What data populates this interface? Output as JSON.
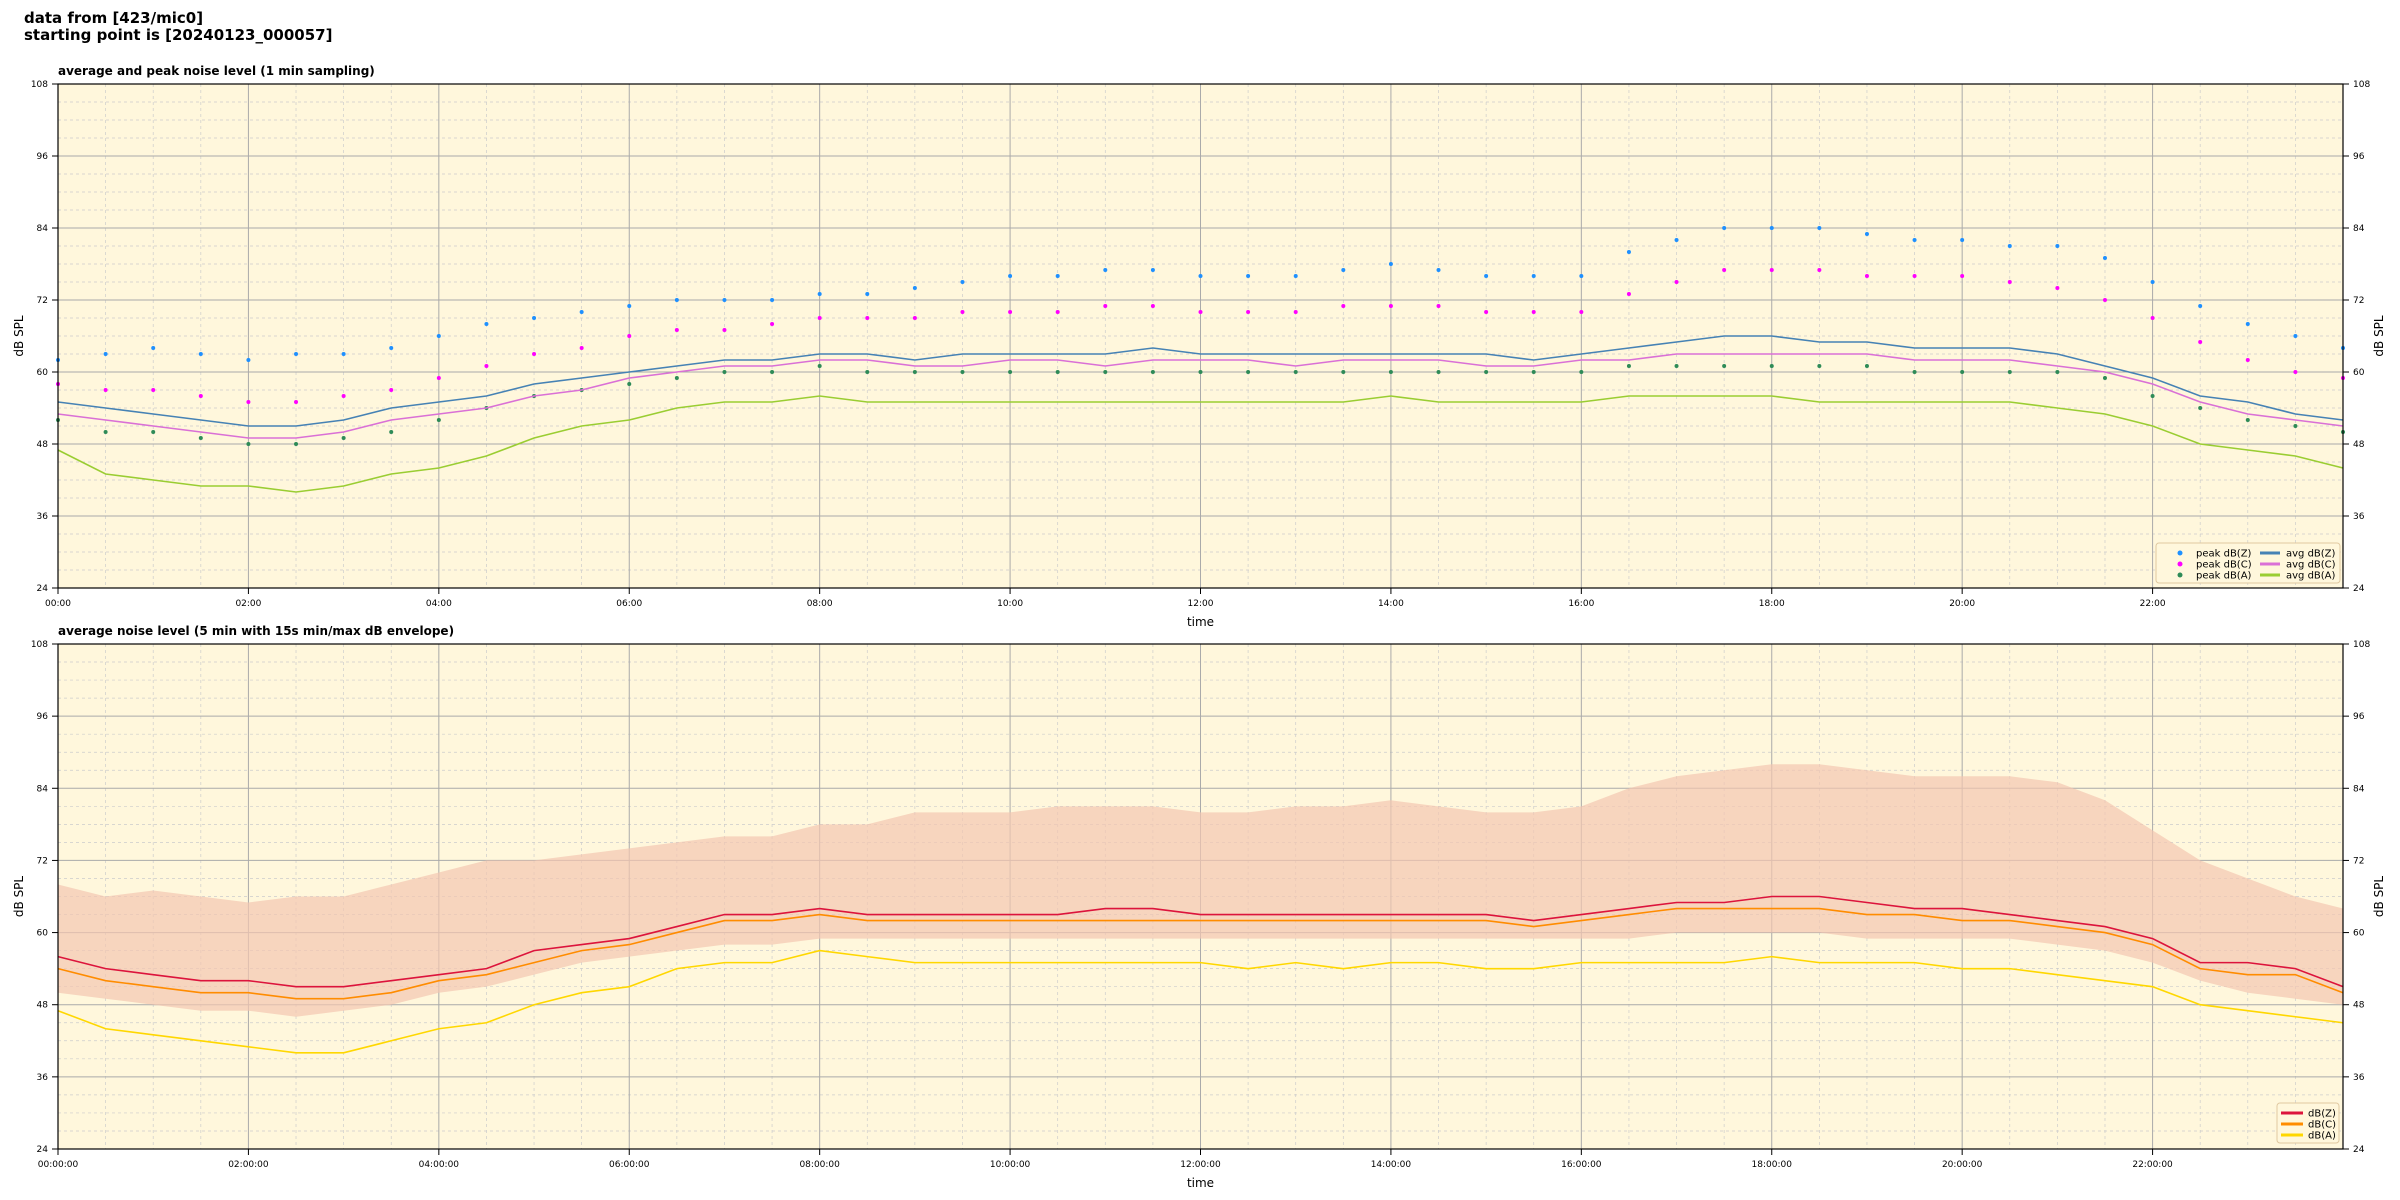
{
  "header": {
    "line1": "data from [423/mic0]",
    "line2": "starting point is [20240123_000057]"
  },
  "colors": {
    "plot_bg": "#fff7dc",
    "peak_z": "#1e90ff",
    "peak_c": "#ff00ff",
    "peak_a": "#2e8b57",
    "avg_z": "#4682b4",
    "avg_c": "#da70d6",
    "avg_a": "#9acd32",
    "z": "#dc143c",
    "c": "#ff8c00",
    "a": "#ffd700",
    "envelope": "#f4c6b0"
  },
  "chart_data": [
    {
      "type": "line",
      "title": "average and peak noise level (1 min sampling)",
      "xlabel": "time",
      "ylabel": "dB SPL",
      "ylim": [
        24,
        108
      ],
      "yticks": [
        "24",
        "36",
        "48",
        "60",
        "72",
        "84",
        "96",
        "108"
      ],
      "xlim_hours": [
        0,
        24
      ],
      "xticks": [
        "00:00",
        "02:00",
        "04:00",
        "06:00",
        "08:00",
        "10:00",
        "12:00",
        "14:00",
        "16:00",
        "18:00",
        "20:00",
        "22:00"
      ],
      "grid": true,
      "legend": "bottom-right",
      "x_hours": [
        0,
        0.5,
        1,
        1.5,
        2,
        2.5,
        3,
        3.5,
        4,
        4.5,
        5,
        5.5,
        6,
        6.5,
        7,
        7.5,
        8,
        8.5,
        9,
        9.5,
        10,
        10.5,
        11,
        11.5,
        12,
        12.5,
        13,
        13.5,
        14,
        14.5,
        15,
        15.5,
        16,
        16.5,
        17,
        17.5,
        18,
        18.5,
        19,
        19.5,
        20,
        20.5,
        21,
        21.5,
        22,
        22.5,
        23,
        23.5,
        24
      ],
      "series": [
        {
          "name": "peak dB(Z)",
          "kind": "scatter",
          "values": [
            62,
            63,
            64,
            63,
            62,
            63,
            63,
            64,
            66,
            68,
            69,
            70,
            71,
            72,
            72,
            72,
            73,
            73,
            74,
            75,
            76,
            76,
            77,
            77,
            76,
            76,
            76,
            77,
            78,
            77,
            76,
            76,
            76,
            80,
            82,
            84,
            84,
            84,
            83,
            82,
            82,
            81,
            81,
            79,
            75,
            71,
            68,
            66,
            64
          ]
        },
        {
          "name": "peak dB(C)",
          "kind": "scatter",
          "values": [
            58,
            57,
            57,
            56,
            55,
            55,
            56,
            57,
            59,
            61,
            63,
            64,
            66,
            67,
            67,
            68,
            69,
            69,
            69,
            70,
            70,
            70,
            71,
            71,
            70,
            70,
            70,
            71,
            71,
            71,
            70,
            70,
            70,
            73,
            75,
            77,
            77,
            77,
            76,
            76,
            76,
            75,
            74,
            72,
            69,
            65,
            62,
            60,
            59
          ]
        },
        {
          "name": "peak dB(A)",
          "kind": "scatter",
          "values": [
            52,
            50,
            50,
            49,
            48,
            48,
            49,
            50,
            52,
            54,
            56,
            57,
            58,
            59,
            60,
            60,
            61,
            60,
            60,
            60,
            60,
            60,
            60,
            60,
            60,
            60,
            60,
            60,
            60,
            60,
            60,
            60,
            60,
            61,
            61,
            61,
            61,
            61,
            61,
            60,
            60,
            60,
            60,
            59,
            56,
            54,
            52,
            51,
            50
          ]
        },
        {
          "name": "avg dB(Z)",
          "kind": "line",
          "values": [
            55,
            54,
            53,
            52,
            51,
            51,
            52,
            54,
            55,
            56,
            58,
            59,
            60,
            61,
            62,
            62,
            63,
            63,
            62,
            63,
            63,
            63,
            63,
            64,
            63,
            63,
            63,
            63,
            63,
            63,
            63,
            62,
            63,
            64,
            65,
            66,
            66,
            65,
            65,
            64,
            64,
            64,
            63,
            61,
            59,
            56,
            55,
            53,
            52
          ]
        },
        {
          "name": "avg dB(C)",
          "kind": "line",
          "values": [
            53,
            52,
            51,
            50,
            49,
            49,
            50,
            52,
            53,
            54,
            56,
            57,
            59,
            60,
            61,
            61,
            62,
            62,
            61,
            61,
            62,
            62,
            61,
            62,
            62,
            62,
            61,
            62,
            62,
            62,
            61,
            61,
            62,
            62,
            63,
            63,
            63,
            63,
            63,
            62,
            62,
            62,
            61,
            60,
            58,
            55,
            53,
            52,
            51
          ]
        },
        {
          "name": "avg dB(A)",
          "kind": "line",
          "values": [
            47,
            43,
            42,
            41,
            41,
            40,
            41,
            43,
            44,
            46,
            49,
            51,
            52,
            54,
            55,
            55,
            56,
            55,
            55,
            55,
            55,
            55,
            55,
            55,
            55,
            55,
            55,
            55,
            56,
            55,
            55,
            55,
            55,
            56,
            56,
            56,
            56,
            55,
            55,
            55,
            55,
            55,
            54,
            53,
            51,
            48,
            47,
            46,
            44
          ]
        }
      ]
    },
    {
      "type": "line",
      "title": "average noise level (5 min with 15s min/max dB envelope)",
      "xlabel": "time",
      "ylabel": "dB SPL",
      "ylim": [
        24,
        108
      ],
      "yticks": [
        "24",
        "36",
        "48",
        "60",
        "72",
        "84",
        "96",
        "108"
      ],
      "xlim_hours": [
        0,
        24
      ],
      "xticks": [
        "00:00:00",
        "02:00:00",
        "04:00:00",
        "06:00:00",
        "08:00:00",
        "10:00:00",
        "12:00:00",
        "14:00:00",
        "16:00:00",
        "18:00:00",
        "20:00:00",
        "22:00:00"
      ],
      "grid": true,
      "legend": "bottom-right",
      "x_hours": [
        0,
        0.5,
        1,
        1.5,
        2,
        2.5,
        3,
        3.5,
        4,
        4.5,
        5,
        5.5,
        6,
        6.5,
        7,
        7.5,
        8,
        8.5,
        9,
        9.5,
        10,
        10.5,
        11,
        11.5,
        12,
        12.5,
        13,
        13.5,
        14,
        14.5,
        15,
        15.5,
        16,
        16.5,
        17,
        17.5,
        18,
        18.5,
        19,
        19.5,
        20,
        20.5,
        21,
        21.5,
        22,
        22.5,
        23,
        23.5,
        24
      ],
      "envelope_max": [
        68,
        66,
        67,
        66,
        65,
        66,
        66,
        68,
        70,
        72,
        72,
        73,
        74,
        75,
        76,
        76,
        78,
        78,
        80,
        80,
        80,
        81,
        81,
        81,
        80,
        80,
        81,
        81,
        82,
        81,
        80,
        80,
        81,
        84,
        86,
        87,
        88,
        88,
        87,
        86,
        86,
        86,
        85,
        82,
        77,
        72,
        69,
        66,
        64
      ],
      "envelope_min": [
        50,
        49,
        48,
        47,
        47,
        46,
        47,
        48,
        50,
        51,
        53,
        55,
        56,
        57,
        58,
        58,
        59,
        59,
        59,
        59,
        59,
        59,
        59,
        59,
        59,
        59,
        59,
        59,
        59,
        59,
        59,
        59,
        59,
        59,
        60,
        60,
        60,
        60,
        59,
        59,
        59,
        59,
        58,
        57,
        55,
        52,
        50,
        49,
        48
      ],
      "series": [
        {
          "name": "dB(Z)",
          "kind": "line",
          "values": [
            56,
            54,
            53,
            52,
            52,
            51,
            51,
            52,
            53,
            54,
            57,
            58,
            59,
            61,
            63,
            63,
            64,
            63,
            63,
            63,
            63,
            63,
            64,
            64,
            63,
            63,
            63,
            63,
            63,
            63,
            63,
            62,
            63,
            64,
            65,
            65,
            66,
            66,
            65,
            64,
            64,
            63,
            62,
            61,
            59,
            55,
            55,
            54,
            51
          ]
        },
        {
          "name": "dB(C)",
          "kind": "line",
          "values": [
            54,
            52,
            51,
            50,
            50,
            49,
            49,
            50,
            52,
            53,
            55,
            57,
            58,
            60,
            62,
            62,
            63,
            62,
            62,
            62,
            62,
            62,
            62,
            62,
            62,
            62,
            62,
            62,
            62,
            62,
            62,
            61,
            62,
            63,
            64,
            64,
            64,
            64,
            63,
            63,
            62,
            62,
            61,
            60,
            58,
            54,
            53,
            53,
            50
          ]
        },
        {
          "name": "dB(A)",
          "kind": "line",
          "values": [
            47,
            44,
            43,
            42,
            41,
            40,
            40,
            42,
            44,
            45,
            48,
            50,
            51,
            54,
            55,
            55,
            57,
            56,
            55,
            55,
            55,
            55,
            55,
            55,
            55,
            54,
            55,
            54,
            55,
            55,
            54,
            54,
            55,
            55,
            55,
            55,
            56,
            55,
            55,
            55,
            54,
            54,
            53,
            52,
            51,
            48,
            47,
            46,
            45
          ]
        }
      ]
    }
  ]
}
